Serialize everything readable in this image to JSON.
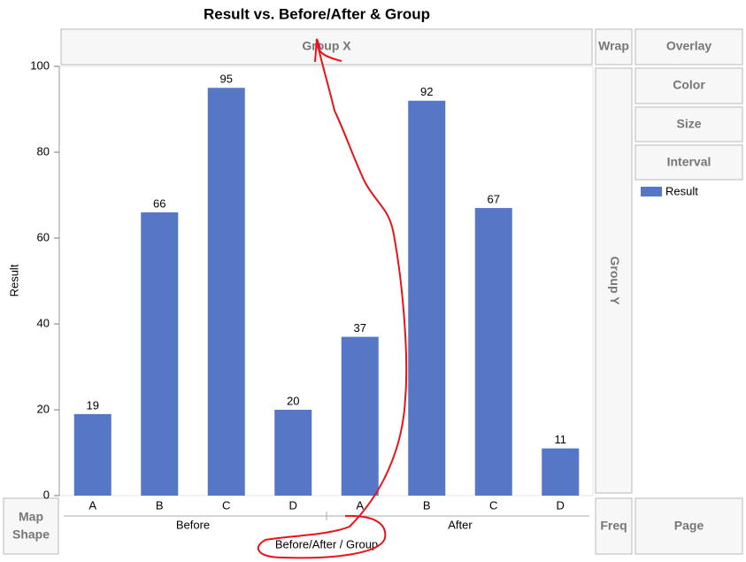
{
  "chart_data": {
    "type": "bar",
    "title": "Result vs. Before/After & Group",
    "categories": [
      "A",
      "B",
      "C",
      "D",
      "A",
      "B",
      "C",
      "D"
    ],
    "groups": [
      "Before",
      "After"
    ],
    "series": [
      {
        "name": "Result",
        "color": "#5677c5",
        "values": [
          19,
          66,
          95,
          20,
          37,
          92,
          67,
          11
        ]
      }
    ],
    "ylim": [
      0,
      100
    ],
    "yticks": [
      0,
      20,
      40,
      60,
      80,
      100
    ],
    "y_label": "Result",
    "x_label": "Before/After / Group",
    "data_labels": true
  },
  "ui": {
    "group_x": "Group X",
    "wrap": "Wrap",
    "overlay": "Overlay",
    "color": "Color",
    "size": "Size",
    "interval": "Interval",
    "group_y": "Group Y",
    "map_shape": [
      "Map",
      "Shape"
    ],
    "freq": "Freq",
    "page": "Page"
  }
}
